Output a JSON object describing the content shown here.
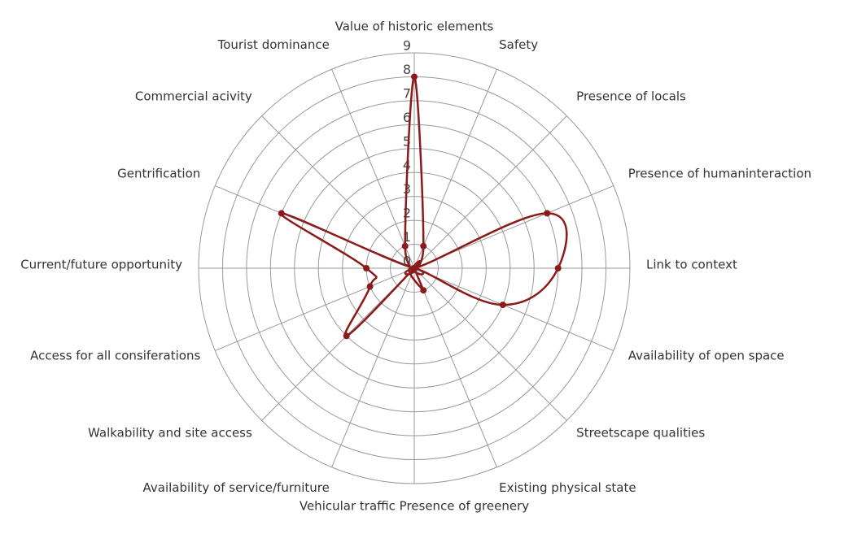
{
  "chart_data": {
    "type": "radar",
    "categories": [
      "Value of historic elements",
      "Safety",
      "Presence of locals",
      "Presence of humaninteraction",
      "Link to context",
      "Availability of open space",
      "Streetscape qualities",
      "Existing physical state",
      "Vehicular traffic Presence of greenery",
      "Availability of service/furniture",
      "Walkability and site access",
      "Access for all consiferations",
      "Current/future opportunity",
      "Gentrification",
      "Commercial acivity",
      "Tourist dominance"
    ],
    "series": [
      {
        "color": "#8b1a1a",
        "values": [
          8,
          1,
          0,
          6,
          6,
          4,
          0,
          1,
          0,
          0,
          4,
          2,
          2,
          6,
          0,
          1
        ]
      }
    ],
    "ylim": [
      0,
      9
    ],
    "yticks": [
      0,
      1,
      2,
      3,
      4,
      5,
      6,
      7,
      8,
      9
    ],
    "grid": true
  }
}
